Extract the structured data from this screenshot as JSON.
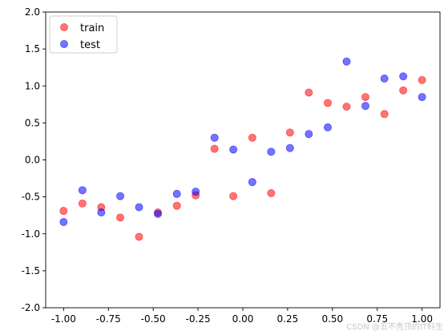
{
  "chart_data": {
    "type": "scatter",
    "title": "",
    "xlabel": "",
    "ylabel": "",
    "xlim": [
      -1.1,
      1.1
    ],
    "ylim": [
      -2.0,
      2.0
    ],
    "xticks": [
      "-1.00",
      "-0.75",
      "-0.50",
      "-0.25",
      "0.00",
      "0.25",
      "0.50",
      "0.75",
      "1.00"
    ],
    "xtick_values": [
      -1.0,
      -0.75,
      -0.5,
      -0.25,
      0.0,
      0.25,
      0.5,
      0.75,
      1.0
    ],
    "yticks": [
      "-2.0",
      "-1.5",
      "-1.0",
      "-0.5",
      "0.0",
      "0.5",
      "1.0",
      "1.5",
      "2.0"
    ],
    "ytick_values": [
      -2.0,
      -1.5,
      -1.0,
      -0.5,
      0.0,
      0.5,
      1.0,
      1.5,
      2.0
    ],
    "grid": false,
    "legend_position": "top-left",
    "series": [
      {
        "name": "train",
        "color": "#ff0000",
        "points": [
          [
            -1.0,
            -0.69
          ],
          [
            -0.895,
            -0.59
          ],
          [
            -0.79,
            -0.64
          ],
          [
            -0.684,
            -0.78
          ],
          [
            -0.579,
            -1.04
          ],
          [
            -0.474,
            -0.71
          ],
          [
            -0.368,
            -0.62
          ],
          [
            -0.263,
            -0.48
          ],
          [
            -0.158,
            0.15
          ],
          [
            -0.053,
            -0.49
          ],
          [
            0.053,
            0.3
          ],
          [
            0.158,
            -0.45
          ],
          [
            0.263,
            0.37
          ],
          [
            0.368,
            0.91
          ],
          [
            0.474,
            0.77
          ],
          [
            0.579,
            0.72
          ],
          [
            0.684,
            0.85
          ],
          [
            0.79,
            0.62
          ],
          [
            0.895,
            0.94
          ],
          [
            1.0,
            1.08
          ]
        ]
      },
      {
        "name": "test",
        "color": "#0000ff",
        "points": [
          [
            -1.0,
            -0.84
          ],
          [
            -0.895,
            -0.41
          ],
          [
            -0.79,
            -0.71
          ],
          [
            -0.684,
            -0.49
          ],
          [
            -0.579,
            -0.64
          ],
          [
            -0.474,
            -0.73
          ],
          [
            -0.368,
            -0.46
          ],
          [
            -0.263,
            -0.43
          ],
          [
            -0.158,
            0.3
          ],
          [
            -0.053,
            0.14
          ],
          [
            0.053,
            -0.3
          ],
          [
            0.158,
            0.11
          ],
          [
            0.263,
            0.16
          ],
          [
            0.368,
            0.35
          ],
          [
            0.474,
            0.44
          ],
          [
            0.579,
            1.33
          ],
          [
            0.684,
            0.73
          ],
          [
            0.79,
            1.1
          ],
          [
            0.895,
            1.13
          ],
          [
            1.0,
            0.85
          ]
        ]
      }
    ]
  },
  "watermark": "CSDN @五不秃顶的IT科生"
}
